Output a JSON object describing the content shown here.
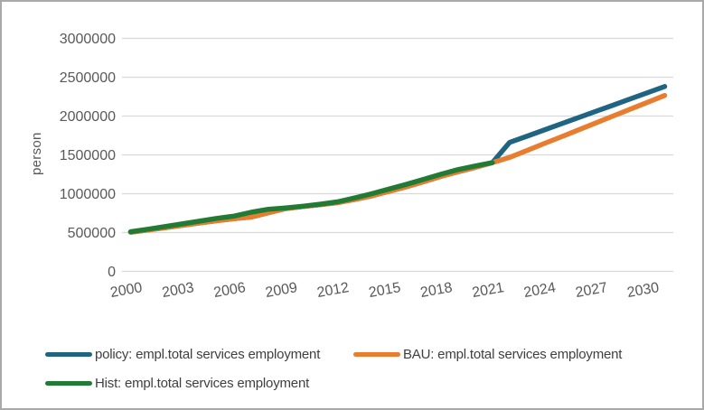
{
  "colors": {
    "grid": "#d9d9d9",
    "axis_text": "#595959",
    "legend_text": "#3f3f3f",
    "border": "#a9a9a9",
    "background": "#ffffff"
  },
  "chart_data": {
    "type": "line",
    "title": "",
    "xlabel": "",
    "ylabel": "person",
    "ylim": [
      0,
      3000000
    ],
    "grid": true,
    "legend_position": "bottom",
    "y_ticks": [
      0,
      500000,
      1000000,
      1500000,
      2000000,
      2500000,
      3000000
    ],
    "x_tick_labels": [
      "2000",
      "2003",
      "2006",
      "2009",
      "2012",
      "2015",
      "2018",
      "2021",
      "2024",
      "2027",
      "2030"
    ],
    "x": [
      2000,
      2001,
      2002,
      2003,
      2004,
      2005,
      2006,
      2007,
      2008,
      2009,
      2010,
      2011,
      2012,
      2013,
      2014,
      2015,
      2016,
      2017,
      2018,
      2019,
      2020,
      2021,
      2022,
      2023,
      2024,
      2025,
      2026,
      2027,
      2028,
      2029,
      2030,
      2031
    ],
    "series": [
      {
        "name": "policy: empl.total services employment",
        "color": "#1f6582",
        "values": [
          505000,
          532000,
          562000,
          593000,
          623000,
          652000,
          678000,
          700000,
          755000,
          808000,
          835000,
          858000,
          885000,
          925000,
          972000,
          1030000,
          1090000,
          1155000,
          1222000,
          1283000,
          1338000,
          1400000,
          1660000,
          1740000,
          1820000,
          1900000,
          1980000,
          2060000,
          2140000,
          2220000,
          2300000,
          2380000
        ]
      },
      {
        "name": "BAU: empl.total services employment",
        "color": "#e97d2f",
        "values": [
          505000,
          532000,
          562000,
          593000,
          623000,
          652000,
          678000,
          700000,
          755000,
          808000,
          835000,
          858000,
          885000,
          925000,
          972000,
          1030000,
          1090000,
          1155000,
          1222000,
          1283000,
          1338000,
          1400000,
          1468000,
          1556000,
          1645000,
          1733000,
          1822000,
          1910000,
          2000000,
          2088000,
          2177000,
          2265000
        ]
      },
      {
        "name": "Hist: empl.total services employment",
        "color": "#217b35",
        "values": [
          510000,
          543000,
          577000,
          612000,
          647000,
          682000,
          712000,
          762000,
          800000,
          818000,
          840000,
          865000,
          895000,
          945000,
          1000000,
          1060000,
          1120000,
          1185000,
          1250000,
          1310000,
          1357000,
          1400000
        ]
      }
    ]
  }
}
